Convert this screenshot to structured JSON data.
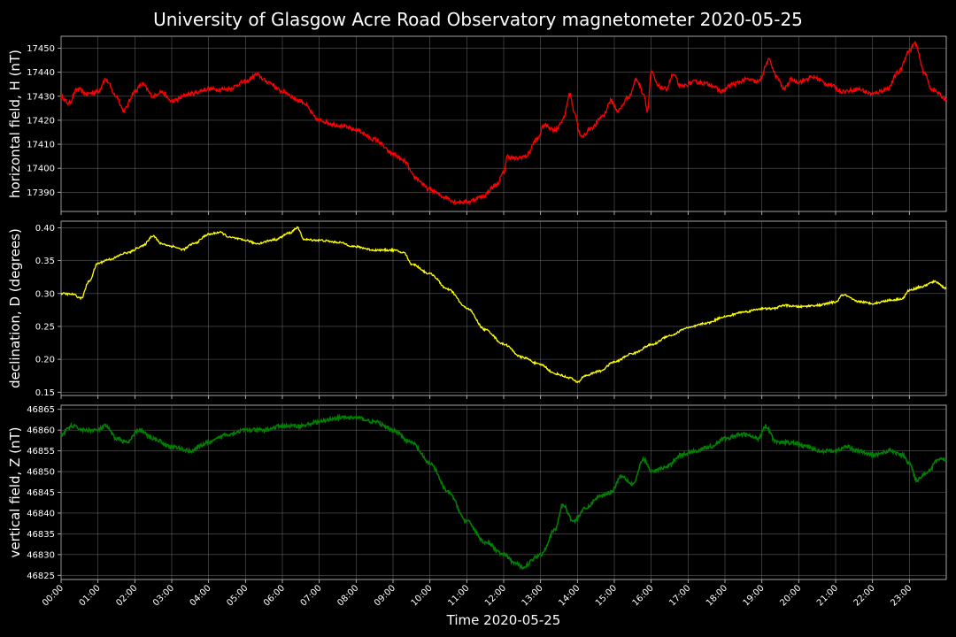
{
  "chart_data": {
    "type": "line",
    "title": "University of Glasgow Acre Road Observatory magnetometer 2020-05-25",
    "xlabel": "Time 2020-05-25",
    "x_ticks": [
      "00:00",
      "01:00",
      "02:00",
      "03:00",
      "04:00",
      "05:00",
      "06:00",
      "07:00",
      "08:00",
      "09:00",
      "10:00",
      "11:00",
      "12:00",
      "13:00",
      "14:00",
      "15:00",
      "16:00",
      "17:00",
      "18:00",
      "19:00",
      "20:00",
      "21:00",
      "22:00",
      "23:00"
    ],
    "xlim_hours": [
      0,
      24
    ],
    "grid": true,
    "panels": [
      {
        "name": "H",
        "ylabel": "horizontal field, H (nT)",
        "color": "#ff0000",
        "ylim": [
          17382,
          17455
        ],
        "yticks": [
          17390,
          17400,
          17410,
          17420,
          17430,
          17440,
          17450
        ],
        "tick_labels": [
          "17390",
          "17400",
          "17410",
          "17420",
          "17430",
          "17440",
          "17450"
        ],
        "noise": 0.9,
        "series": [
          [
            0.0,
            17430
          ],
          [
            0.2,
            17427
          ],
          [
            0.45,
            17433
          ],
          [
            0.7,
            17431
          ],
          [
            1.0,
            17432
          ],
          [
            1.2,
            17437
          ],
          [
            1.5,
            17430
          ],
          [
            1.7,
            17424
          ],
          [
            2.0,
            17432
          ],
          [
            2.2,
            17435
          ],
          [
            2.5,
            17430
          ],
          [
            2.7,
            17432
          ],
          [
            3.0,
            17428
          ],
          [
            3.5,
            17431
          ],
          [
            4.0,
            17433
          ],
          [
            4.5,
            17433
          ],
          [
            5.0,
            17436
          ],
          [
            5.3,
            17439
          ],
          [
            5.6,
            17436
          ],
          [
            6.0,
            17432
          ],
          [
            6.5,
            17428
          ],
          [
            7.0,
            17420
          ],
          [
            7.5,
            17418
          ],
          [
            8.0,
            17416
          ],
          [
            8.5,
            17412
          ],
          [
            9.0,
            17406
          ],
          [
            9.3,
            17403
          ],
          [
            9.6,
            17396
          ],
          [
            10.0,
            17391
          ],
          [
            10.4,
            17388
          ],
          [
            10.7,
            17386
          ],
          [
            11.0,
            17386
          ],
          [
            11.4,
            17388
          ],
          [
            11.8,
            17393
          ],
          [
            12.0,
            17398
          ],
          [
            12.1,
            17405
          ],
          [
            12.3,
            17404
          ],
          [
            12.6,
            17405
          ],
          [
            12.9,
            17412
          ],
          [
            13.1,
            17418
          ],
          [
            13.4,
            17416
          ],
          [
            13.6,
            17420
          ],
          [
            13.8,
            17431
          ],
          [
            13.9,
            17424
          ],
          [
            14.1,
            17413
          ],
          [
            14.4,
            17417
          ],
          [
            14.7,
            17422
          ],
          [
            14.9,
            17428
          ],
          [
            15.1,
            17424
          ],
          [
            15.4,
            17430
          ],
          [
            15.6,
            17437
          ],
          [
            15.8,
            17431
          ],
          [
            15.9,
            17424
          ],
          [
            16.0,
            17440
          ],
          [
            16.2,
            17434
          ],
          [
            16.4,
            17433
          ],
          [
            16.6,
            17439
          ],
          [
            16.8,
            17434
          ],
          [
            17.2,
            17436
          ],
          [
            17.6,
            17435
          ],
          [
            17.9,
            17432
          ],
          [
            18.2,
            17435
          ],
          [
            18.6,
            17437
          ],
          [
            18.9,
            17436
          ],
          [
            19.2,
            17445
          ],
          [
            19.4,
            17438
          ],
          [
            19.6,
            17433
          ],
          [
            19.8,
            17437
          ],
          [
            20.0,
            17436
          ],
          [
            20.4,
            17438
          ],
          [
            20.8,
            17435
          ],
          [
            21.2,
            17432
          ],
          [
            21.6,
            17433
          ],
          [
            22.0,
            17431
          ],
          [
            22.4,
            17433
          ],
          [
            22.7,
            17440
          ],
          [
            23.0,
            17449
          ],
          [
            23.15,
            17452
          ],
          [
            23.4,
            17440
          ],
          [
            23.6,
            17433
          ],
          [
            24.0,
            17429
          ]
        ]
      },
      {
        "name": "D",
        "ylabel": "declination, D (degrees)",
        "color": "#ffff00",
        "ylim": [
          0.145,
          0.41
        ],
        "yticks": [
          0.15,
          0.2,
          0.25,
          0.3,
          0.35,
          0.4
        ],
        "tick_labels": [
          "0.15",
          "0.20",
          "0.25",
          "0.30",
          "0.35",
          "0.40"
        ],
        "noise": 0.0015,
        "series": [
          [
            0.0,
            0.3
          ],
          [
            0.3,
            0.299
          ],
          [
            0.55,
            0.293
          ],
          [
            0.75,
            0.318
          ],
          [
            1.0,
            0.346
          ],
          [
            1.3,
            0.352
          ],
          [
            1.8,
            0.362
          ],
          [
            2.2,
            0.372
          ],
          [
            2.5,
            0.388
          ],
          [
            2.7,
            0.376
          ],
          [
            3.0,
            0.372
          ],
          [
            3.3,
            0.367
          ],
          [
            3.6,
            0.376
          ],
          [
            4.0,
            0.39
          ],
          [
            4.3,
            0.393
          ],
          [
            4.6,
            0.385
          ],
          [
            5.0,
            0.381
          ],
          [
            5.3,
            0.376
          ],
          [
            5.8,
            0.382
          ],
          [
            6.2,
            0.392
          ],
          [
            6.4,
            0.4
          ],
          [
            6.6,
            0.382
          ],
          [
            7.0,
            0.381
          ],
          [
            7.5,
            0.378
          ],
          [
            8.0,
            0.371
          ],
          [
            8.5,
            0.366
          ],
          [
            9.0,
            0.366
          ],
          [
            9.3,
            0.362
          ],
          [
            9.5,
            0.345
          ],
          [
            10.0,
            0.33
          ],
          [
            10.5,
            0.306
          ],
          [
            11.0,
            0.278
          ],
          [
            11.5,
            0.245
          ],
          [
            12.0,
            0.223
          ],
          [
            12.5,
            0.203
          ],
          [
            13.0,
            0.192
          ],
          [
            13.4,
            0.178
          ],
          [
            13.8,
            0.172
          ],
          [
            14.0,
            0.165
          ],
          [
            14.2,
            0.175
          ],
          [
            14.6,
            0.182
          ],
          [
            15.0,
            0.196
          ],
          [
            15.5,
            0.209
          ],
          [
            16.0,
            0.222
          ],
          [
            16.5,
            0.236
          ],
          [
            17.0,
            0.248
          ],
          [
            17.5,
            0.255
          ],
          [
            18.0,
            0.265
          ],
          [
            18.5,
            0.272
          ],
          [
            19.0,
            0.277
          ],
          [
            19.3,
            0.277
          ],
          [
            19.6,
            0.282
          ],
          [
            20.0,
            0.28
          ],
          [
            20.5,
            0.282
          ],
          [
            21.0,
            0.287
          ],
          [
            21.2,
            0.298
          ],
          [
            21.6,
            0.288
          ],
          [
            22.0,
            0.285
          ],
          [
            22.5,
            0.29
          ],
          [
            22.8,
            0.292
          ],
          [
            23.0,
            0.305
          ],
          [
            23.3,
            0.31
          ],
          [
            23.7,
            0.318
          ],
          [
            24.0,
            0.308
          ]
        ]
      },
      {
        "name": "Z",
        "ylabel": "vertical field, Z (nT)",
        "color": "#008000",
        "ylim": [
          46824,
          46866
        ],
        "yticks": [
          46825,
          46830,
          46835,
          46840,
          46845,
          46850,
          46855,
          46860,
          46865
        ],
        "tick_labels": [
          "46825",
          "46830",
          "46835",
          "46840",
          "46845",
          "46850",
          "46855",
          "46860",
          "46865"
        ],
        "noise": 0.45,
        "series": [
          [
            0.0,
            46859
          ],
          [
            0.3,
            46861
          ],
          [
            0.6,
            46860
          ],
          [
            1.0,
            46860
          ],
          [
            1.2,
            46861
          ],
          [
            1.5,
            46858
          ],
          [
            1.8,
            46857
          ],
          [
            2.1,
            46860
          ],
          [
            2.5,
            46858
          ],
          [
            3.0,
            46856
          ],
          [
            3.5,
            46855
          ],
          [
            4.0,
            46857
          ],
          [
            4.5,
            46859
          ],
          [
            5.0,
            46860
          ],
          [
            5.5,
            46860
          ],
          [
            6.0,
            46861
          ],
          [
            6.5,
            46861
          ],
          [
            7.0,
            46862
          ],
          [
            7.5,
            46863
          ],
          [
            8.0,
            46863
          ],
          [
            8.5,
            46862
          ],
          [
            9.0,
            46860
          ],
          [
            9.5,
            46857
          ],
          [
            10.0,
            46852
          ],
          [
            10.5,
            46845
          ],
          [
            11.0,
            46838
          ],
          [
            11.5,
            46833
          ],
          [
            12.0,
            46830
          ],
          [
            12.3,
            46828
          ],
          [
            12.5,
            46827
          ],
          [
            13.0,
            46830
          ],
          [
            13.4,
            46836
          ],
          [
            13.6,
            46842
          ],
          [
            13.9,
            46838
          ],
          [
            14.2,
            46841
          ],
          [
            14.6,
            46844
          ],
          [
            14.9,
            46845
          ],
          [
            15.2,
            46849
          ],
          [
            15.5,
            46847
          ],
          [
            15.8,
            46853
          ],
          [
            16.0,
            46850
          ],
          [
            16.4,
            46851
          ],
          [
            16.8,
            46854
          ],
          [
            17.2,
            46855
          ],
          [
            17.6,
            46856
          ],
          [
            18.0,
            46858
          ],
          [
            18.5,
            46859
          ],
          [
            18.9,
            46858
          ],
          [
            19.1,
            46861
          ],
          [
            19.4,
            46857
          ],
          [
            19.8,
            46857
          ],
          [
            20.2,
            46856
          ],
          [
            20.6,
            46855
          ],
          [
            21.0,
            46855
          ],
          [
            21.3,
            46856
          ],
          [
            21.6,
            46855
          ],
          [
            22.0,
            46854
          ],
          [
            22.5,
            46855
          ],
          [
            22.8,
            46854
          ],
          [
            23.0,
            46852
          ],
          [
            23.2,
            46848
          ],
          [
            23.5,
            46850
          ],
          [
            23.8,
            46853
          ],
          [
            24.0,
            46853
          ]
        ]
      }
    ]
  }
}
